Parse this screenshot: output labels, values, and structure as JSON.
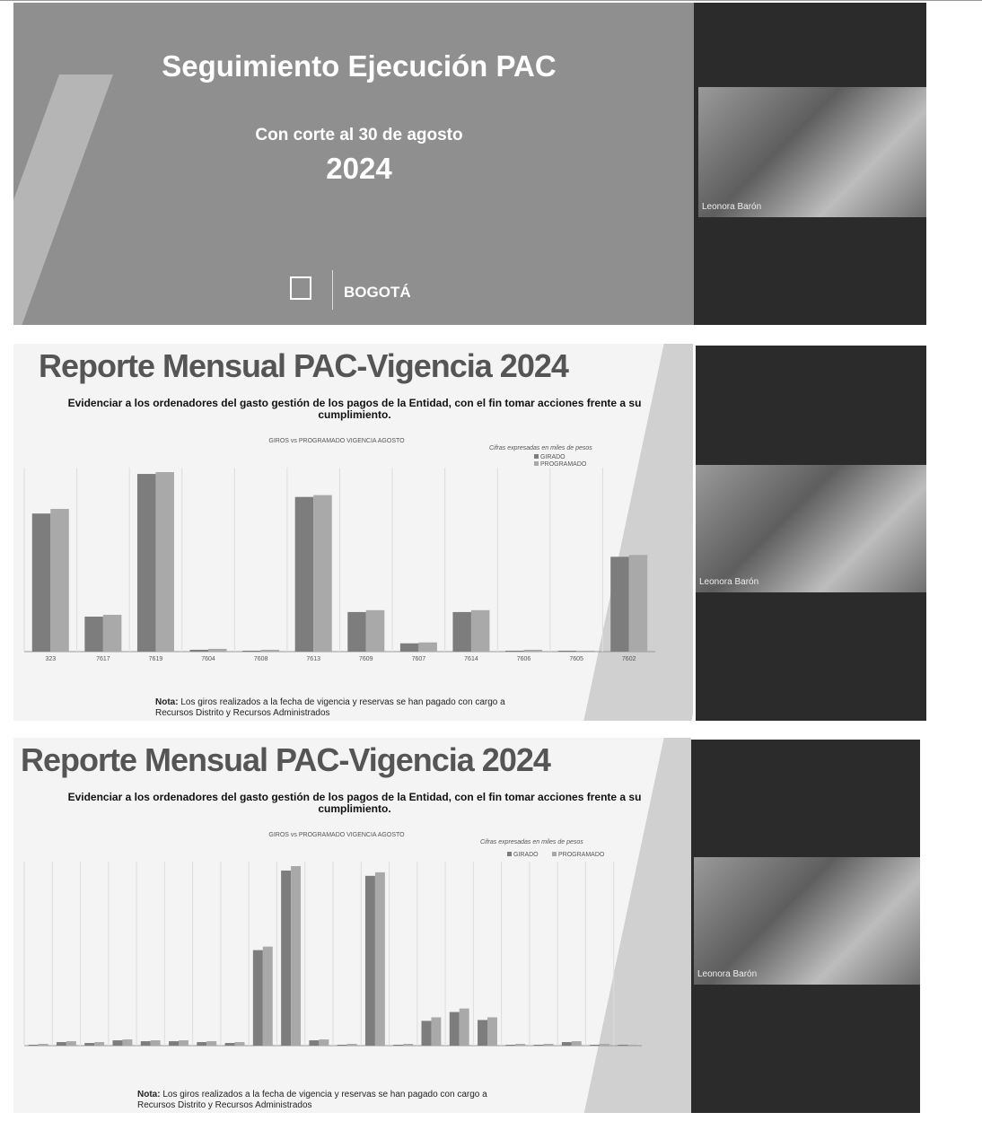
{
  "slide1": {
    "title": "Seguimiento Ejecución PAC",
    "cutoff": "Con corte al 30 de agosto",
    "year": "2024",
    "logo_text": "BOGOTÁ"
  },
  "video_labels": [
    "Leonora Barón",
    "Leonora Barón",
    "Leonora Barón"
  ],
  "reports": [
    {
      "title": "Reporte Mensual PAC-Vigencia 2024",
      "subtitle": "Evidenciar a los ordenadores del gasto gestión de los pagos de la Entidad, con el fin tomar acciones frente a su cumplimiento.",
      "note_label": "Nota:",
      "note_text": "Los giros realizados a la fecha de vigencia y reservas se han pagado con cargo a Recursos Distrito y Recursos Administrados",
      "chart_data": {
        "type": "bar",
        "title": "GIROS vs PROGRAMADO VIGENCIA AGOSTO",
        "units_note": "Cifras expresadas en miles de pesos",
        "categories": [
          "323",
          "7617",
          "7619",
          "7604",
          "7608",
          "7613",
          "7609",
          "7607",
          "7614",
          "7606",
          "7605",
          "7602"
        ],
        "series": [
          {
            "name": "GIRADO",
            "color": "#7d7d7d",
            "values": [
              150,
              38,
              193,
              2,
              1,
              168,
              43,
              9,
              43,
              1,
              1,
              103
            ]
          },
          {
            "name": "PROGRAMADO",
            "color": "#a9a9a9",
            "values": [
              155,
              40,
              195,
              3,
              2,
              170,
              45,
              10,
              45,
              2,
              1,
              105
            ]
          }
        ]
      }
    },
    {
      "title": "Reporte Mensual PAC-Vigencia 2024",
      "subtitle": "Evidenciar a los ordenadores del gasto gestión de los pagos de la Entidad, con el fin tomar acciones frente a su cumplimiento.",
      "note_label": "Nota:",
      "note_text": "Los giros realizados a la fecha de vigencia y reservas se han pagado con cargo a Recursos Distrito y Recursos Administrados",
      "chart_data": {
        "type": "bar",
        "title": "GIROS vs PROGRAMADO VIGENCIA AGOSTO",
        "units_note": "Cifras expresadas en miles de pesos",
        "categories": [
          null,
          null,
          null,
          null,
          null,
          null,
          null,
          null,
          null,
          null,
          null,
          null,
          null,
          null,
          null,
          null,
          null,
          null,
          null,
          null,
          null,
          null
        ],
        "series": [
          {
            "name": "GIRADO",
            "color": "#7d7d7d",
            "values": [
              1,
              4,
              3,
              6,
              5,
              5,
              4,
              3,
              108,
              198,
              6,
              1,
              192,
              1,
              28,
              38,
              29,
              1,
              1,
              4,
              1,
              1
            ]
          },
          {
            "name": "PROGRAMADO",
            "color": "#a9a9a9",
            "values": [
              2,
              5,
              4,
              7,
              6,
              6,
              5,
              4,
              112,
              203,
              7,
              2,
              196,
              2,
              32,
              42,
              32,
              2,
              2,
              5,
              2,
              1
            ]
          }
        ]
      }
    }
  ]
}
